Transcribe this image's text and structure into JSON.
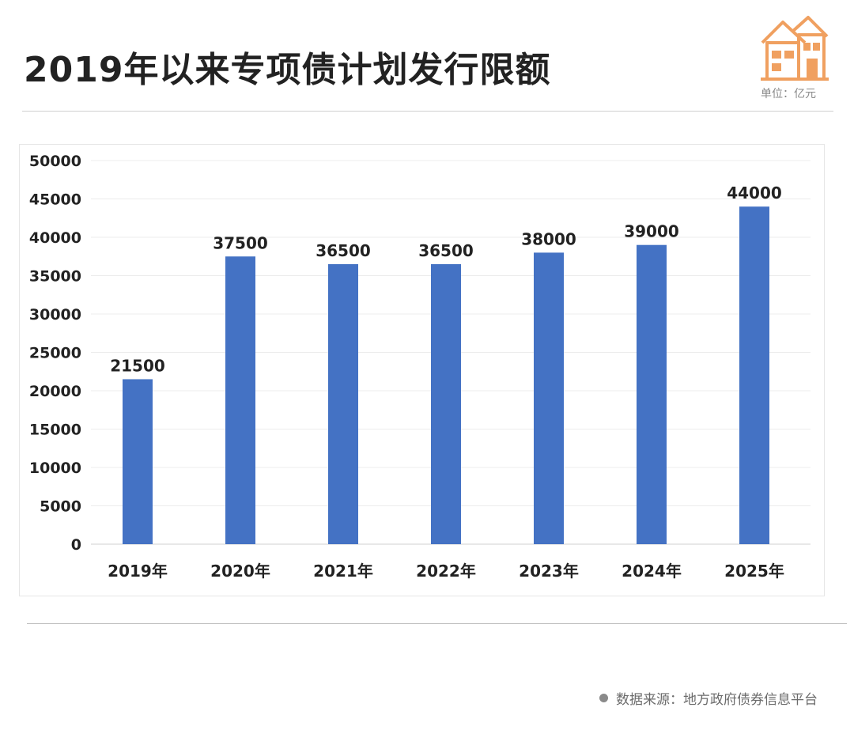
{
  "header": {
    "title": "2019年以来专项债计划发行限额",
    "unit": "单位：亿元"
  },
  "footer": {
    "source": "数据来源：地方政府债券信息平台"
  },
  "colors": {
    "bar": "#4472C4",
    "logo": "#F0A060"
  },
  "chart_data": {
    "type": "bar",
    "title": "2019年以来专项债计划发行限额",
    "categories": [
      "2019年",
      "2020年",
      "2021年",
      "2022年",
      "2023年",
      "2024年",
      "2025年"
    ],
    "values": [
      21500,
      37500,
      36500,
      36500,
      38000,
      39000,
      44000
    ],
    "data_labels": [
      "21500",
      "37500",
      "36500",
      "36500",
      "38000",
      "39000",
      "44000"
    ],
    "ylim": [
      0,
      50000
    ],
    "yticks": [
      0,
      5000,
      10000,
      15000,
      20000,
      25000,
      30000,
      35000,
      40000,
      45000,
      50000
    ],
    "ytick_labels": [
      "0",
      "5000",
      "10000",
      "15000",
      "20000",
      "25000",
      "30000",
      "35000",
      "40000",
      "45000",
      "50000"
    ],
    "xlabel": "",
    "ylabel": "",
    "grid": true
  }
}
